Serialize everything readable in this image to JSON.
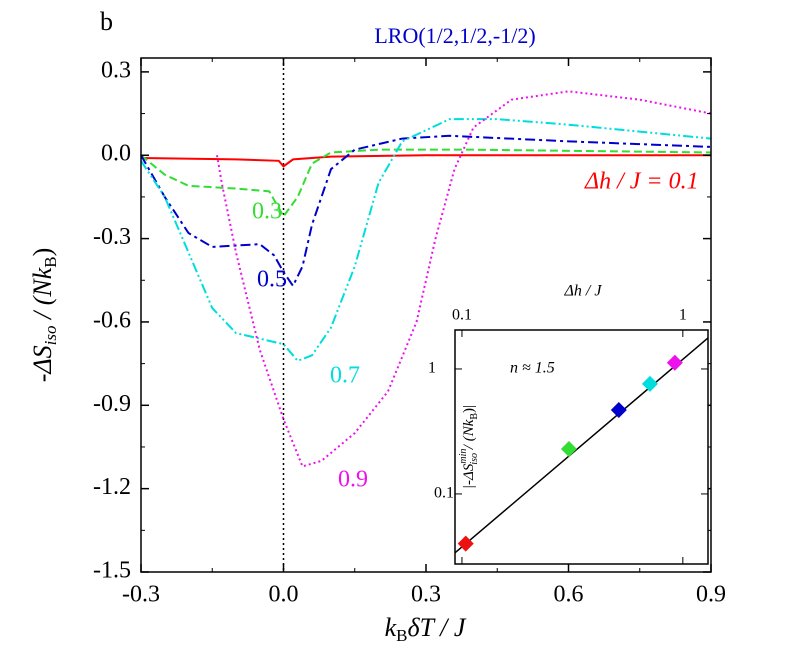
{
  "chart_data": [
    {
      "type": "line",
      "panel_label": "b",
      "title": "LRO(1/2,1/2,-1/2)",
      "xlabel_parts": [
        "k",
        "B",
        "δT / J"
      ],
      "ylabel_parts": [
        "-ΔS",
        "iso",
        " / (",
        "Nk",
        "B",
        ")"
      ],
      "xlim": [
        -0.3,
        0.9
      ],
      "ylim": [
        -1.5,
        0.35
      ],
      "xticks": [
        -0.3,
        {
          "value": 0,
          "label": "0.0"
        },
        0.3,
        0.6,
        0.9
      ],
      "yticks": [
        0.3,
        {
          "value": 0,
          "label": "0.0"
        },
        -0.3,
        -0.6,
        -0.9,
        -1.2,
        -1.5
      ],
      "vline_x": 0,
      "series": [
        {
          "name": "Δh / J = 0.1",
          "color": "#ff0000",
          "style": "solid",
          "x": [
            -0.3,
            -0.1,
            -0.01,
            0.0,
            0.02,
            0.1,
            0.3,
            0.9
          ],
          "values": [
            -0.01,
            -0.015,
            -0.02,
            -0.04,
            -0.015,
            -0.005,
            0.0,
            0.0
          ]
        },
        {
          "name": "0.3",
          "color": "#33dd33",
          "style": "dashed",
          "x": [
            -0.3,
            -0.25,
            -0.2,
            -0.1,
            -0.03,
            0.0,
            0.03,
            0.06,
            0.1,
            0.2,
            0.4,
            0.9
          ],
          "values": [
            0.0,
            -0.07,
            -0.11,
            -0.12,
            -0.13,
            -0.22,
            -0.15,
            -0.03,
            0.01,
            0.02,
            0.02,
            0.01
          ]
        },
        {
          "name": "0.5",
          "color": "#0000cc",
          "style": "dashdot",
          "x": [
            -0.3,
            -0.25,
            -0.2,
            -0.15,
            -0.05,
            -0.02,
            0.0,
            0.02,
            0.04,
            0.06,
            0.1,
            0.15,
            0.25,
            0.35,
            0.6,
            0.9
          ],
          "values": [
            0.0,
            -0.15,
            -0.28,
            -0.33,
            -0.32,
            -0.36,
            -0.42,
            -0.47,
            -0.4,
            -0.25,
            -0.05,
            0.02,
            0.06,
            0.07,
            0.05,
            0.03
          ]
        },
        {
          "name": "0.7",
          "color": "#00dddd",
          "style": "dashdotdot",
          "x": [
            -0.3,
            -0.25,
            -0.2,
            -0.15,
            -0.1,
            -0.05,
            0.0,
            0.03,
            0.06,
            0.1,
            0.15,
            0.2,
            0.25,
            0.35,
            0.45,
            0.6,
            0.9
          ],
          "values": [
            -0.02,
            -0.15,
            -0.35,
            -0.55,
            -0.64,
            -0.66,
            -0.68,
            -0.74,
            -0.72,
            -0.62,
            -0.4,
            -0.1,
            0.05,
            0.13,
            0.13,
            0.11,
            0.06
          ]
        },
        {
          "name": "0.9",
          "color": "#ee11ee",
          "style": "dotted",
          "x": [
            -0.14,
            -0.13,
            -0.1,
            -0.05,
            0.0,
            0.04,
            0.08,
            0.15,
            0.22,
            0.28,
            0.32,
            0.36,
            0.4,
            0.48,
            0.6,
            0.75,
            0.9
          ],
          "values": [
            0.0,
            -0.1,
            -0.35,
            -0.7,
            -0.95,
            -1.12,
            -1.1,
            -1.0,
            -0.85,
            -0.6,
            -0.3,
            -0.05,
            0.1,
            0.2,
            0.23,
            0.2,
            0.15
          ]
        }
      ]
    },
    {
      "type": "scatter",
      "log_scale": true,
      "xlabel": "Δh / J",
      "ylabel_parts": [
        "|-ΔS",
        "min",
        "iso",
        " / (",
        "Nk",
        "B",
        ")|"
      ],
      "annotation": "n ≈ 1.5",
      "xlim": [
        0.093,
        1.3
      ],
      "ylim": [
        0.0275,
        2.05
      ],
      "xticks": [
        0.1,
        1
      ],
      "yticks": [
        1,
        0.1
      ],
      "x": [
        0.104,
        0.305,
        0.513,
        0.71,
        0.92
      ],
      "values": [
        0.04,
        0.229,
        0.47,
        0.76,
        1.12
      ],
      "colors": [
        "#ee1111",
        "#33dd33",
        "#0000cc",
        "#00dddd",
        "#ee11ee"
      ],
      "fit_line": {
        "x": [
          0.093,
          1.3
        ],
        "y": [
          0.0338,
          1.77
        ]
      }
    }
  ]
}
